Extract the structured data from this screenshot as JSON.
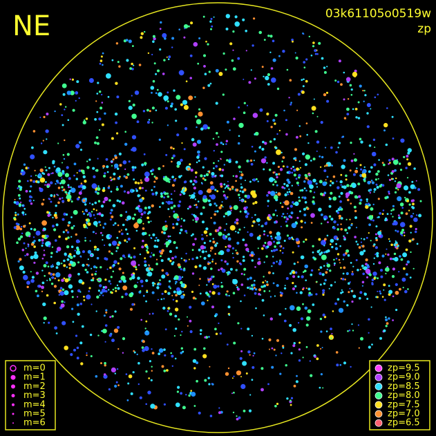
{
  "header": {
    "direction": "NE",
    "image_id": "03k61105o0519w",
    "color_key": "zp"
  },
  "magnitude_legend": {
    "labels": [
      "m=0",
      "m=1",
      "m=2",
      "m=3",
      "m=4",
      "m=5",
      "m=6"
    ],
    "color": "#ff30ff"
  },
  "zp_legend": {
    "labels": [
      "zp=9.5",
      "zp=9.0",
      "zp=8.5",
      "zp=8.0",
      "zp=7.5",
      "zp=7.0",
      "zp=6.5"
    ],
    "colors": [
      "#ff40ff",
      "#b040ff",
      "#30e0ff",
      "#40ff90",
      "#ffe020",
      "#ff9030",
      "#ff6070"
    ]
  }
}
